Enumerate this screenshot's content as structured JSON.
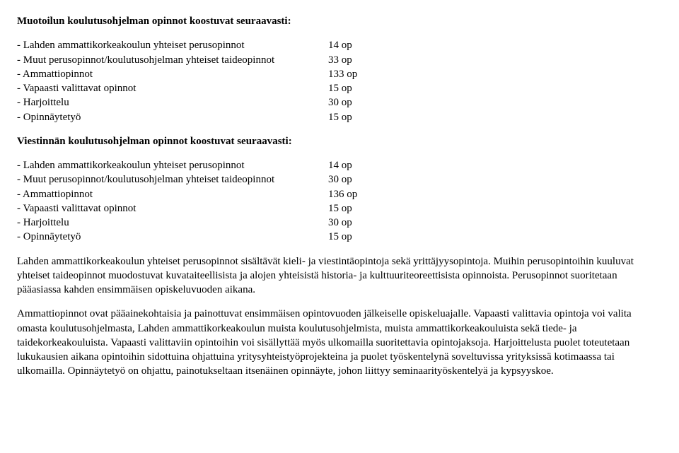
{
  "doc": {
    "heading1": "Muotoilun koulutusohjelman opinnot koostuvat seuraavasti:",
    "list1": {
      "r0": {
        "label": "- Lahden ammattikorkeakoulun yhteiset perusopinnot",
        "val": "14 op"
      },
      "r1": {
        "label": "- Muut perusopinnot/koulutusohjelman yhteiset taideopinnot",
        "val": "33 op"
      },
      "r2": {
        "label": "- Ammattiopinnot",
        "val": "133 op"
      },
      "r3": {
        "label": "- Vapaasti valittavat opinnot",
        "val": "15 op"
      },
      "r4": {
        "label": "- Harjoittelu",
        "val": "30 op"
      },
      "r5": {
        "label": "- Opinnäytetyö",
        "val": "15 op"
      }
    },
    "heading2": "Viestinnän koulutusohjelman opinnot koostuvat seuraavasti:",
    "list2": {
      "r0": {
        "label": "- Lahden ammattikorkeakoulun yhteiset perusopinnot",
        "val": "14 op"
      },
      "r1": {
        "label": "- Muut perusopinnot/koulutusohjelman yhteiset taideopinnot",
        "val": "30 op"
      },
      "r2": {
        "label": "- Ammattiopinnot",
        "val": "136 op"
      },
      "r3": {
        "label": "- Vapaasti valittavat opinnot",
        "val": "15 op"
      },
      "r4": {
        "label": "- Harjoittelu",
        "val": "30 op"
      },
      "r5": {
        "label": "- Opinnäytetyö",
        "val": "15 op"
      }
    },
    "para1": "Lahden ammattikorkeakoulun yhteiset perusopinnot sisältävät kieli- ja viestintäopintoja sekä yrittäjyysopintoja. Muihin perusopintoihin kuuluvat yhteiset taideopinnot muodostuvat kuvataiteellisista ja alojen yhteisistä historia- ja kulttuuriteoreettisista opinnoista. Perusopinnot suoritetaan pääasiassa kahden ensimmäisen opiskeluvuoden aikana.",
    "para2": "Ammattiopinnot ovat pääainekohtaisia ja painottuvat ensimmäisen opintovuoden jälkeiselle opiskeluajalle. Vapaasti valittavia opintoja voi valita omasta koulutusohjelmasta, Lahden ammattikorkeakoulun muista koulutusohjelmista, muista ammattikorkeakouluista sekä tiede- ja taidekorkeakouluista. Vapaasti valittaviin opintoihin voi sisällyttää myös ulkomailla suoritettavia opintojaksoja. Harjoittelusta puolet toteutetaan lukukausien aikana opintoihin sidottuina ohjattuina yritysyhteistyöprojekteina ja puolet työskentelynä soveltuvissa yrityksissä kotimaassa tai ulkomailla. Opinnäytetyö on ohjattu, painotukseltaan itsenäinen opinnäyte, johon liittyy seminaarityöskentelyä ja kypsyyskoe."
  }
}
